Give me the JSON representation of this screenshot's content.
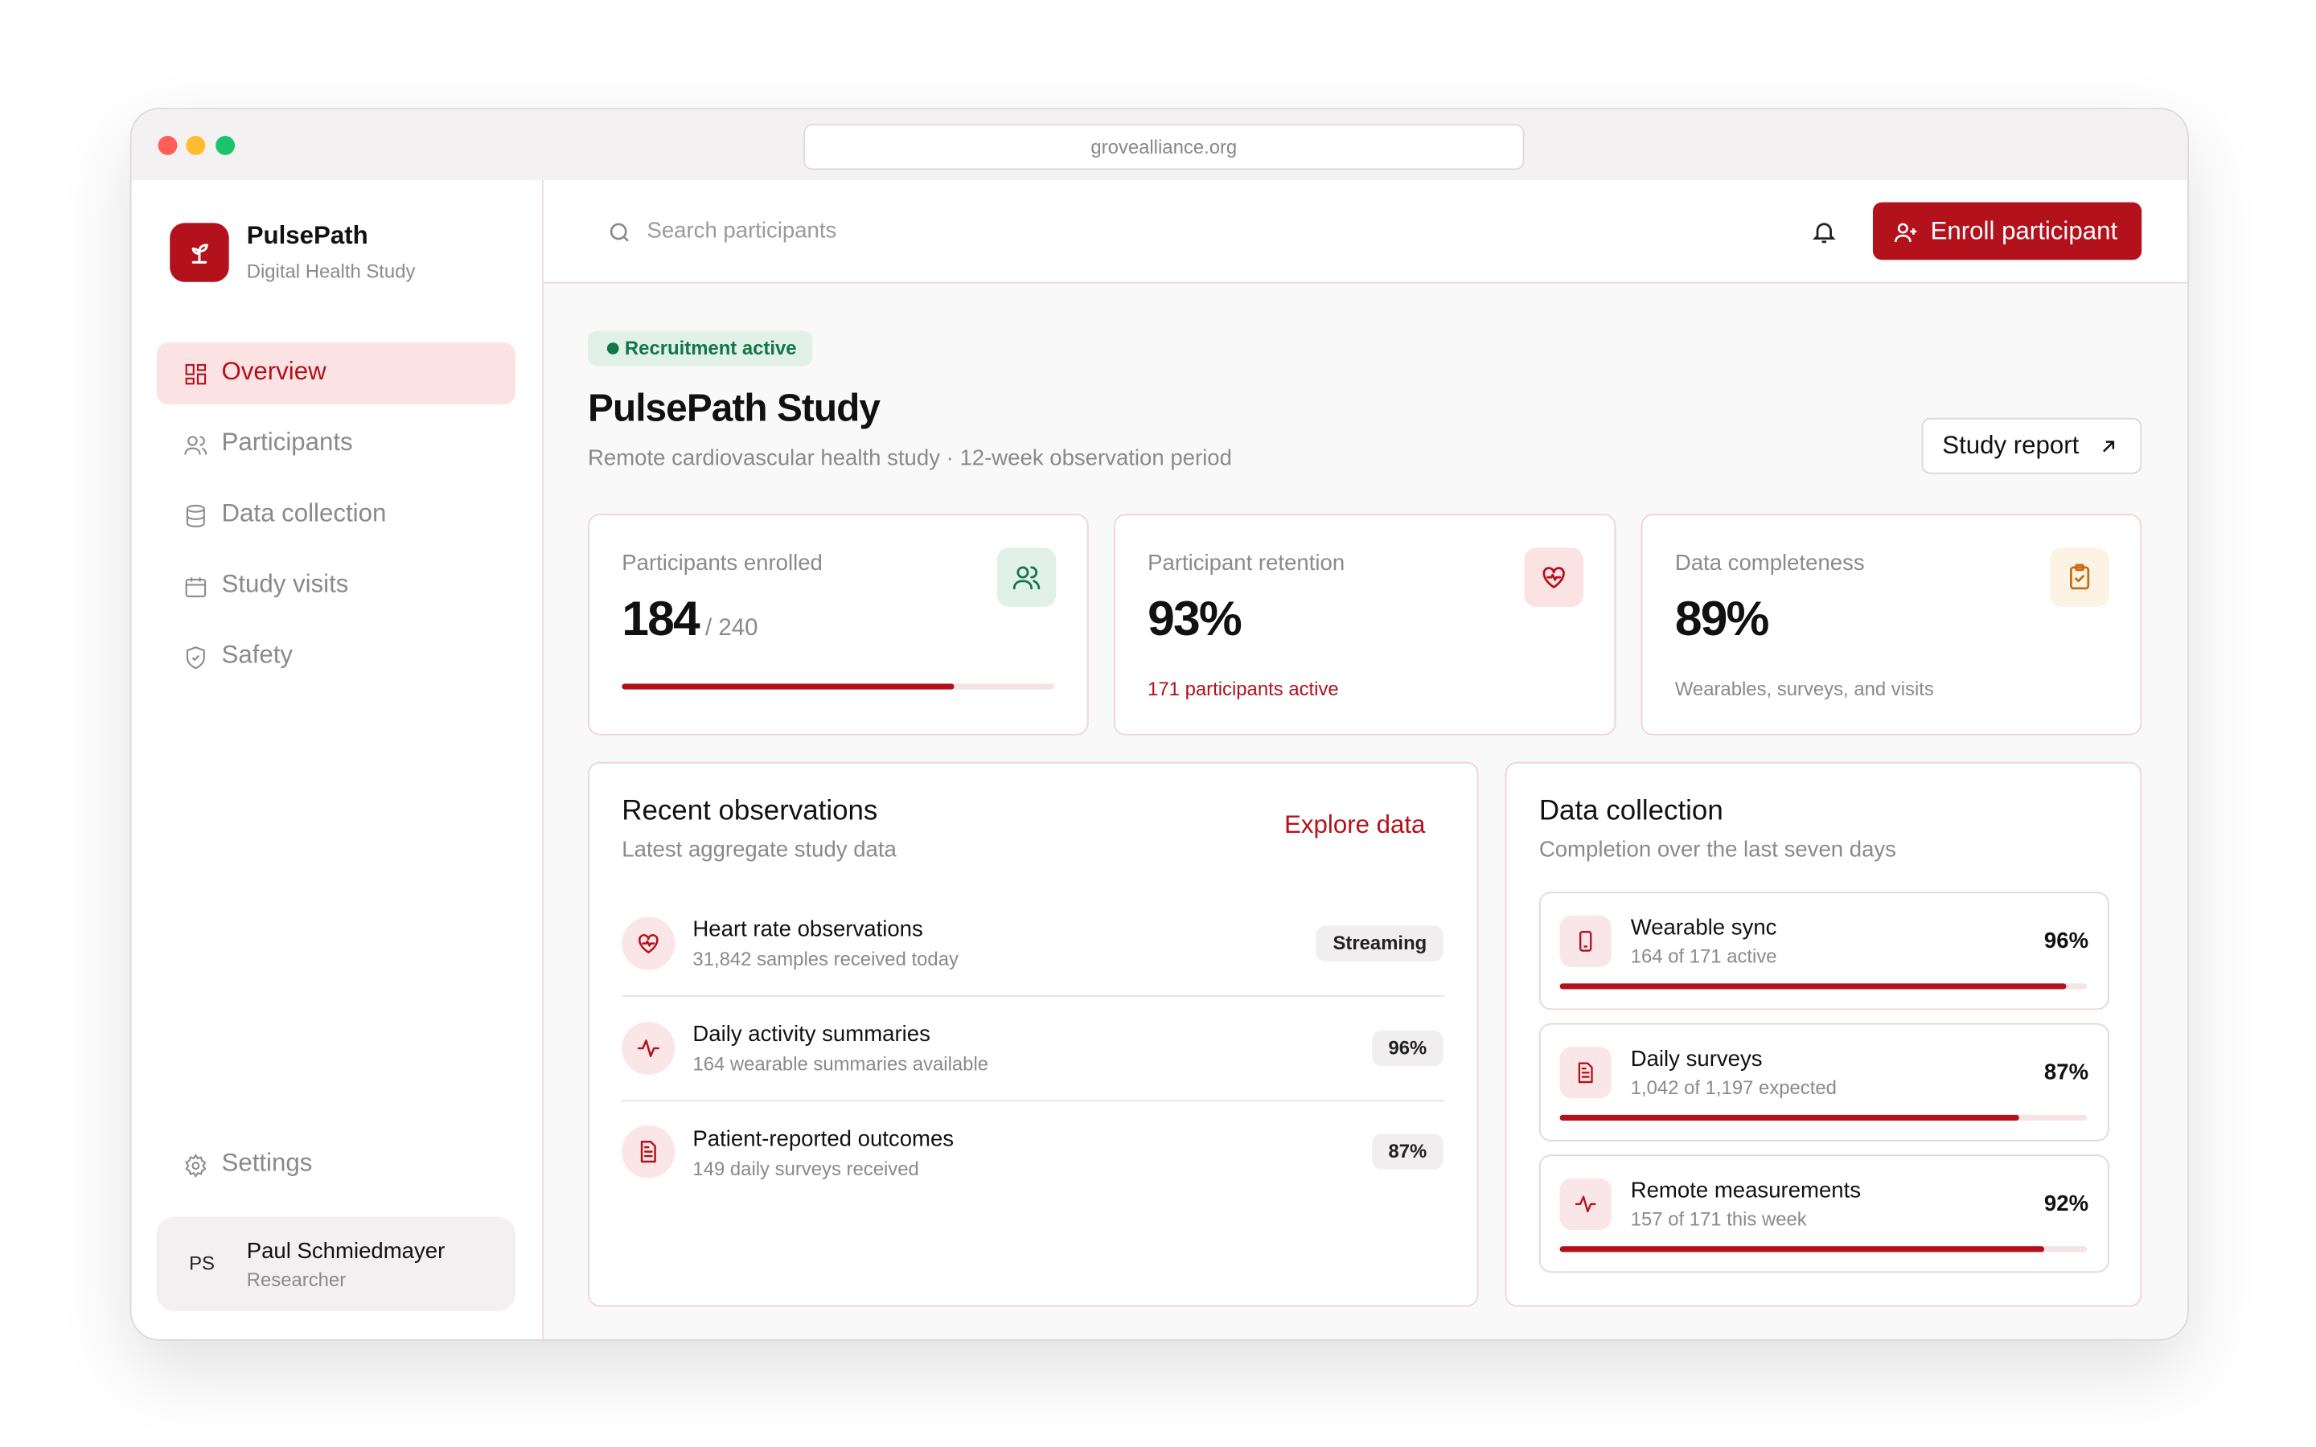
{
  "browser": {
    "url": "grovealliance.org"
  },
  "sidebar": {
    "app_name": "PulsePath",
    "app_subtitle": "Digital Health Study",
    "nav": [
      "Overview",
      "Participants",
      "Data collection",
      "Study visits",
      "Safety"
    ],
    "settings": "Settings",
    "user": {
      "initials": "PS",
      "name": "Paul Schmiedmayer",
      "role": "Researcher"
    }
  },
  "topbar": {
    "search_placeholder": "Search participants",
    "enroll_button": "Enroll participant"
  },
  "header": {
    "status": "Recruitment active",
    "title": "PulsePath Study",
    "subtitle": "Remote cardiovascular health study · 12-week observation period",
    "report_button": "Study report"
  },
  "stats": [
    {
      "label": "Participants enrolled",
      "value": 184,
      "target": {
        "value": 240,
        "label": "/ 240"
      }
    },
    {
      "label": "Participant retention",
      "value": "93%",
      "note": "171 participants active"
    },
    {
      "label": "Data completeness",
      "value": "89%",
      "note": "Wearables, surveys, and visits"
    }
  ],
  "observations": {
    "title": "Recent observations",
    "subtitle": "Latest aggregate study data",
    "link": "Explore data",
    "rows": [
      {
        "title": "Heart rate observations",
        "detail": "31,842 samples received today",
        "badge": "Streaming"
      },
      {
        "title": "Daily activity summaries",
        "detail": "164 wearable summaries available",
        "badge": "96%"
      },
      {
        "title": "Patient-reported outcomes",
        "detail": "149 daily surveys received",
        "badge": "87%"
      }
    ]
  },
  "collection": {
    "title": "Data collection",
    "subtitle": "Completion over the last seven days",
    "rows": [
      {
        "title": "Wearable sync",
        "detail": "164 of 171 active",
        "percent": {
          "value": 96,
          "label": "96%"
        }
      },
      {
        "title": "Daily surveys",
        "detail": "1,042 of 1,197 expected",
        "percent": {
          "value": 87,
          "label": "87%"
        }
      },
      {
        "title": "Remote measurements",
        "detail": "157 of 171 this week",
        "percent": {
          "value": 92,
          "label": "92%"
        }
      }
    ]
  }
}
